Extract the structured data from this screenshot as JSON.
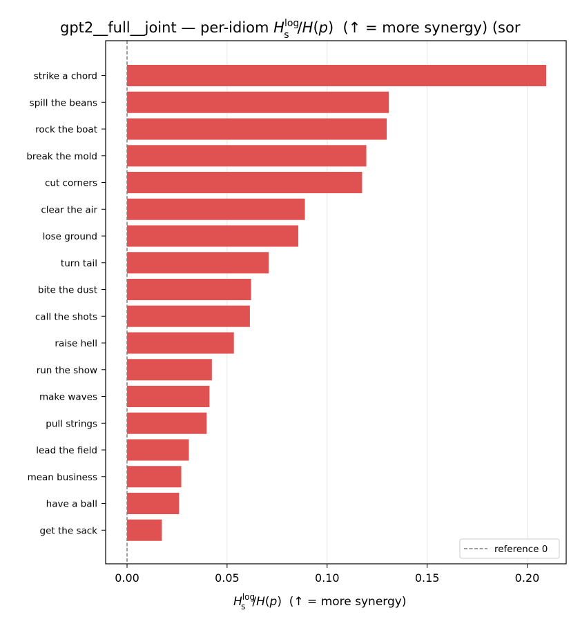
{
  "chart_data": {
    "type": "bar",
    "orientation": "horizontal",
    "title": {
      "prefix": "gpt2__full__joint — per-idiom ",
      "suffix": "  (↑ = more synergy) (sor"
    },
    "xlabel": {
      "suffix": "  (↑ = more synergy)"
    },
    "math": {
      "H": "H",
      "s": "s",
      "log": "log",
      "over": "/",
      "Hp": "H",
      "p_open": "(",
      "p": "p",
      "p_close": ")"
    },
    "categories": [
      "strike a chord",
      "spill the beans",
      "rock the boat",
      "break the mold",
      "cut corners",
      "clear the air",
      "lose ground",
      "turn tail",
      "bite the dust",
      "call the shots",
      "raise hell",
      "run the show",
      "make waves",
      "pull strings",
      "lead the field",
      "mean business",
      "have a ball",
      "get the sack"
    ],
    "values": [
      0.2095,
      0.1308,
      0.1298,
      0.1196,
      0.1175,
      0.0889,
      0.0856,
      0.0708,
      0.062,
      0.0614,
      0.0534,
      0.0424,
      0.0412,
      0.0398,
      0.0309,
      0.0271,
      0.026,
      0.0174
    ],
    "xticks": [
      "0.00",
      "0.05",
      "0.10",
      "0.15",
      "0.20"
    ],
    "xtick_values": [
      0,
      0.05,
      0.1,
      0.15,
      0.2
    ],
    "xlim": [
      -0.0107,
      0.2195
    ],
    "bar_color": "#e05252",
    "reference_line": {
      "value": 0,
      "label": "reference 0",
      "color": "#808080",
      "style": "dashed"
    },
    "grid": {
      "x": true,
      "color": "#e6e6e6"
    },
    "legend": {
      "position": "bottom-right",
      "entries": [
        "reference 0"
      ]
    }
  }
}
